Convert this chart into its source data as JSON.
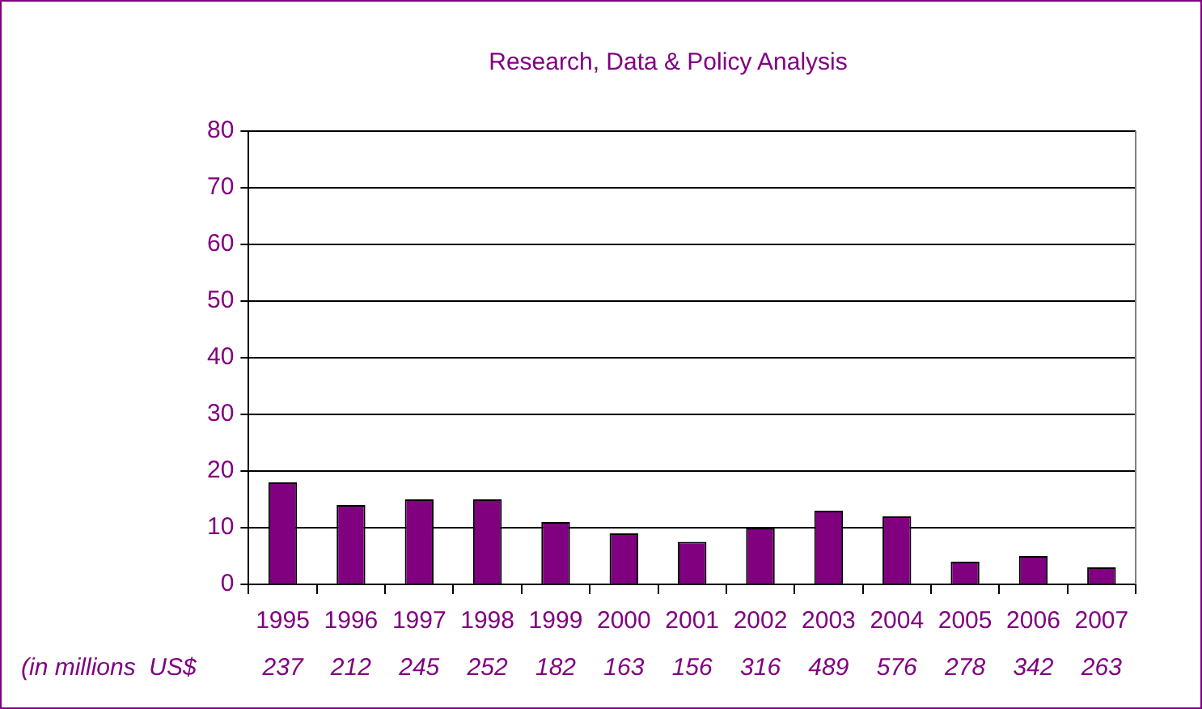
{
  "chart_data": {
    "type": "bar",
    "title": "Research, Data & Policy Analysis",
    "categories": [
      "1995",
      "1996",
      "1997",
      "1998",
      "1999",
      "2000",
      "2001",
      "2002",
      "2003",
      "2004",
      "2005",
      "2006",
      "2007"
    ],
    "values": [
      18,
      14,
      15,
      15,
      11,
      9,
      7.5,
      10,
      13,
      12,
      4,
      5,
      3
    ],
    "color": "#800080",
    "ylim": [
      0,
      80
    ],
    "yticks": [
      0,
      10,
      20,
      30,
      40,
      50,
      60,
      70,
      80
    ],
    "grid": "y",
    "legend": false,
    "annotations": [
      "(in millions  US$",
      "237",
      "212",
      "245",
      "252",
      "182",
      "163",
      "156",
      "316",
      "489",
      "576",
      "278",
      "342",
      "263"
    ]
  }
}
